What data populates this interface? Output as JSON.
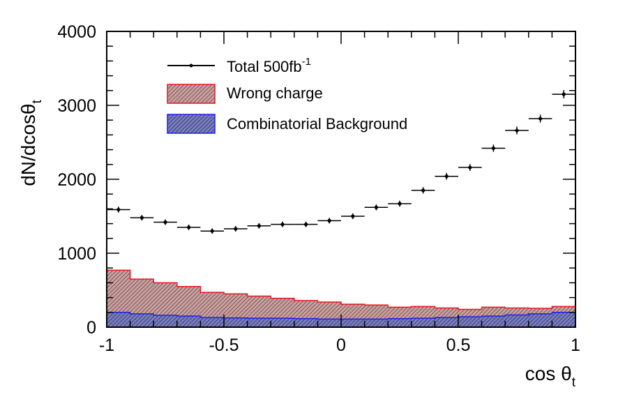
{
  "colors": {
    "total": "#000000",
    "wrong_charge_line": "#e8141c",
    "wrong_charge_fill": "#b38484",
    "combinatorial_line": "#1f1fe6",
    "combinatorial_fill": "#5a5fa8"
  },
  "chart_data": {
    "type": "histogram",
    "title": "",
    "xlabel_main": "cos θ",
    "xlabel_sub": "t",
    "ylabel_main": "dN/dcosθ",
    "ylabel_sub": "t",
    "xlim": [
      -1,
      1
    ],
    "ylim": [
      0,
      4000
    ],
    "xticks": [
      "-1",
      "-0.5",
      "0",
      "0.5",
      "1"
    ],
    "yticks": [
      "0",
      "1000",
      "2000",
      "3000",
      "4000"
    ],
    "grid": false,
    "legend_position": "top-left",
    "bin_edges": [
      -1.0,
      -0.9,
      -0.8,
      -0.7,
      -0.6,
      -0.5,
      -0.4,
      -0.3,
      -0.2,
      -0.1,
      0.0,
      0.1,
      0.2,
      0.3,
      0.4,
      0.5,
      0.6,
      0.7,
      0.8,
      0.9,
      1.0
    ],
    "series": [
      {
        "name": "Total 500fb",
        "name_sup": "-1",
        "style": "points",
        "values": [
          1590,
          1480,
          1420,
          1350,
          1300,
          1330,
          1370,
          1390,
          1390,
          1440,
          1500,
          1620,
          1670,
          1850,
          2040,
          2160,
          2420,
          2660,
          2820,
          3150
        ],
        "errors": [
          40,
          38,
          38,
          37,
          36,
          37,
          37,
          37,
          37,
          38,
          39,
          40,
          41,
          43,
          45,
          46,
          49,
          52,
          53,
          56
        ]
      },
      {
        "name": "Wrong charge",
        "style": "filled-step",
        "values": [
          770,
          650,
          600,
          550,
          470,
          450,
          420,
          390,
          360,
          340,
          310,
          300,
          270,
          280,
          260,
          240,
          270,
          260,
          255,
          280
        ]
      },
      {
        "name": "Combinatorial Background",
        "style": "filled-step",
        "values": [
          200,
          180,
          160,
          150,
          130,
          125,
          120,
          120,
          115,
          110,
          110,
          110,
          115,
          120,
          130,
          140,
          150,
          165,
          180,
          200
        ]
      }
    ]
  }
}
